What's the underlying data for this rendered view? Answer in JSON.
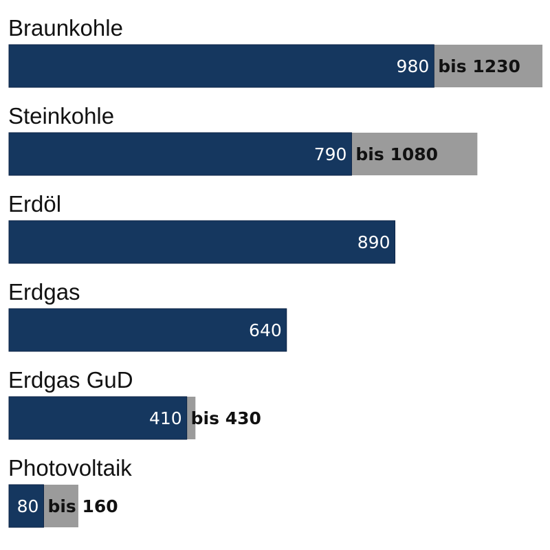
{
  "chart_data": {
    "type": "bar",
    "orientation": "horizontal",
    "stacked_range": true,
    "title": "",
    "xlabel": "",
    "ylabel": "",
    "grid": false,
    "legend": "none",
    "xlim": [
      0,
      1230
    ],
    "categories": [
      "Braunkohle",
      "Steinkohle",
      "Erdöl",
      "Erdgas",
      "Erdgas GuD",
      "Photovoltaik"
    ],
    "series": [
      {
        "values": [
          980,
          790,
          890,
          640,
          410,
          80
        ],
        "labels": [
          "980",
          "790",
          "890",
          "640",
          "410",
          "80"
        ],
        "color": "#15375f"
      },
      {
        "values": [
          1230,
          1080,
          null,
          null,
          430,
          160
        ],
        "labels": [
          "bis 1230",
          "bis 1080",
          "",
          "",
          "bis 430",
          "bis 160"
        ],
        "color": "#9b9b9b"
      }
    ]
  }
}
